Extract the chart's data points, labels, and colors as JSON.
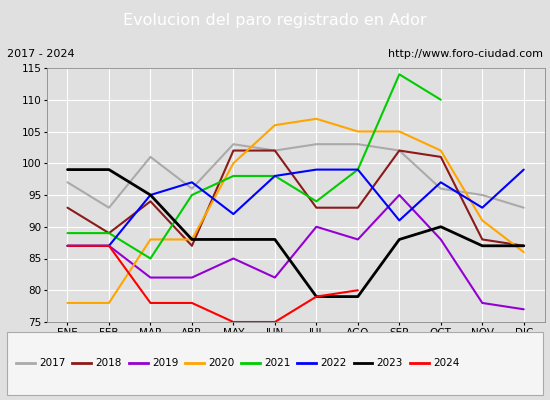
{
  "title": "Evolucion del paro registrado en Ador",
  "subtitle_left": "2017 - 2024",
  "subtitle_right": "http://www.foro-ciudad.com",
  "months": [
    "ENE",
    "FEB",
    "MAR",
    "ABR",
    "MAY",
    "JUN",
    "JUL",
    "AGO",
    "SEP",
    "OCT",
    "NOV",
    "DIC"
  ],
  "ylim": [
    75,
    115
  ],
  "yticks": [
    75,
    80,
    85,
    90,
    95,
    100,
    105,
    110,
    115
  ],
  "series": {
    "2017": {
      "color": "#aaaaaa",
      "values": [
        97,
        93,
        101,
        96,
        103,
        102,
        103,
        103,
        102,
        96,
        95,
        93
      ]
    },
    "2018": {
      "color": "#8b1a1a",
      "values": [
        93,
        89,
        94,
        87,
        102,
        102,
        93,
        93,
        102,
        101,
        88,
        87
      ]
    },
    "2019": {
      "color": "#9400d3",
      "values": [
        87,
        87,
        82,
        82,
        85,
        82,
        90,
        88,
        95,
        88,
        78,
        77
      ]
    },
    "2020": {
      "color": "#ffa500",
      "values": [
        78,
        78,
        88,
        88,
        100,
        106,
        107,
        105,
        105,
        102,
        91,
        86
      ]
    },
    "2021": {
      "color": "#00cc00",
      "values": [
        89,
        89,
        85,
        95,
        98,
        98,
        94,
        99,
        114,
        110,
        null,
        null
      ]
    },
    "2022": {
      "color": "#0000ff",
      "values": [
        87,
        87,
        95,
        97,
        92,
        98,
        99,
        99,
        91,
        97,
        93,
        99
      ]
    },
    "2023": {
      "color": "#000000",
      "values": [
        99,
        99,
        95,
        88,
        88,
        88,
        79,
        79,
        88,
        90,
        87,
        87
      ]
    },
    "2024": {
      "color": "#ff0000",
      "values": [
        87,
        87,
        78,
        78,
        75,
        75,
        79,
        80,
        null,
        null,
        null,
        null
      ]
    }
  },
  "background_color": "#e0e0e0",
  "plot_bg_color": "#e0e0e0",
  "title_bg_color": "#4f81bd",
  "title_color": "#ffffff",
  "subtitle_bg_color": "#d0d0d0",
  "grid_color": "#ffffff",
  "legend_bg_color": "#f5f5f5"
}
